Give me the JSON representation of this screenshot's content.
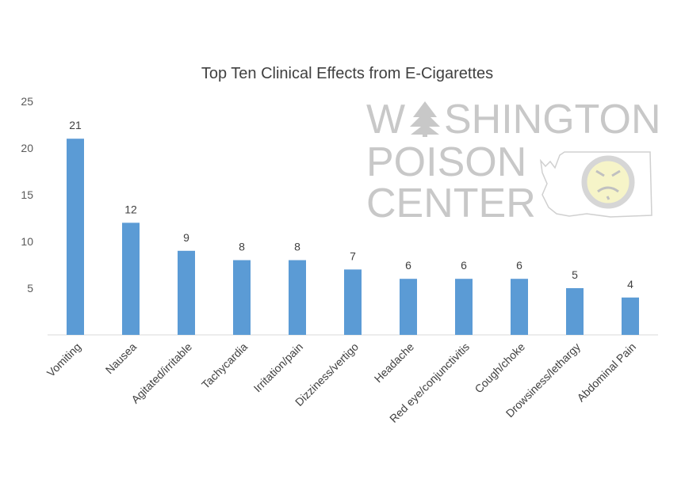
{
  "chart_data": {
    "type": "bar",
    "title": "Top Ten Clinical Effects from E-Cigarettes",
    "xlabel": "",
    "ylabel": "",
    "ylim": [
      0,
      25
    ],
    "yticks": [
      5,
      10,
      15,
      20,
      25
    ],
    "grid": false,
    "categories": [
      "Vomiting",
      "Nausea",
      "Agitated/irritable",
      "Tachycardia",
      "Irritation/pain",
      "Dizziness/vertigo",
      "Headache",
      "Red eye/conjunctivitis",
      "Cough/choke",
      "Drowsiness/lethargy",
      "Abdominal Pain"
    ],
    "values": [
      21,
      12,
      9,
      8,
      8,
      7,
      6,
      6,
      6,
      5,
      4
    ],
    "bar_color": "#5b9bd5"
  },
  "watermark": {
    "line1_prefix": "W",
    "line1_suffix": "SHINGTON",
    "line2": "POISON",
    "line3": "CENTER",
    "text_color": "#c8c8c8",
    "icon": "washington-state-map-icon",
    "face_icon": "mr-yuk-face-icon"
  }
}
